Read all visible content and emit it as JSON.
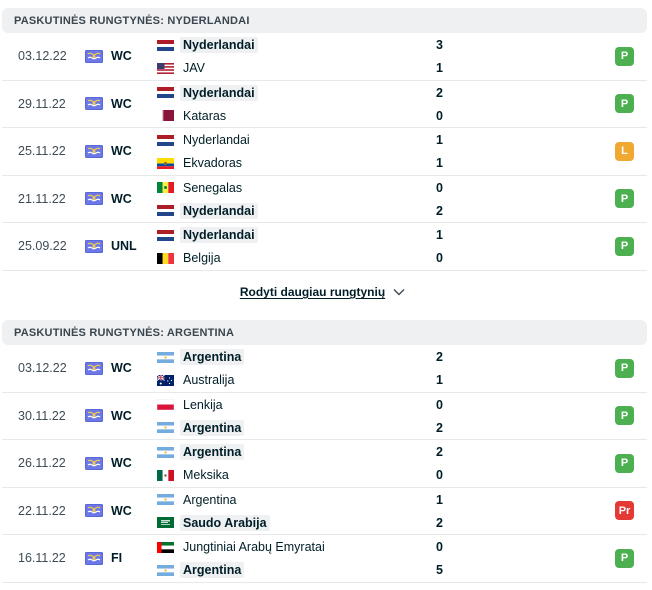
{
  "colors": {
    "win": "#4caf50",
    "draw": "#f0a830",
    "loss": "#e53935",
    "header_bg": "#eef0f1"
  },
  "sections": [
    {
      "title": "PASKUTINĖS RUNGTYNĖS: NYDERLANDAI",
      "matches": [
        {
          "date": "03.12.22",
          "comp": "WC",
          "home": {
            "name": "Nyderlandai",
            "flag": "nl",
            "score": "3",
            "winner": true
          },
          "away": {
            "name": "JAV",
            "flag": "us",
            "score": "1",
            "winner": false
          },
          "result": "P",
          "result_type": "win"
        },
        {
          "date": "29.11.22",
          "comp": "WC",
          "home": {
            "name": "Nyderlandai",
            "flag": "nl",
            "score": "2",
            "winner": true
          },
          "away": {
            "name": "Kataras",
            "flag": "qa",
            "score": "0",
            "winner": false
          },
          "result": "P",
          "result_type": "win"
        },
        {
          "date": "25.11.22",
          "comp": "WC",
          "home": {
            "name": "Nyderlandai",
            "flag": "nl",
            "score": "1",
            "winner": false
          },
          "away": {
            "name": "Ekvadoras",
            "flag": "ec",
            "score": "1",
            "winner": false
          },
          "result": "L",
          "result_type": "draw"
        },
        {
          "date": "21.11.22",
          "comp": "WC",
          "home": {
            "name": "Senegalas",
            "flag": "sn",
            "score": "0",
            "winner": false
          },
          "away": {
            "name": "Nyderlandai",
            "flag": "nl",
            "score": "2",
            "winner": true
          },
          "result": "P",
          "result_type": "win"
        },
        {
          "date": "25.09.22",
          "comp": "UNL",
          "home": {
            "name": "Nyderlandai",
            "flag": "nl",
            "score": "1",
            "winner": true
          },
          "away": {
            "name": "Belgija",
            "flag": "be",
            "score": "0",
            "winner": false
          },
          "result": "P",
          "result_type": "win"
        }
      ],
      "more_label": "Rodyti daugiau rungtynių"
    },
    {
      "title": "PASKUTINĖS RUNGTYNĖS: ARGENTINA",
      "matches": [
        {
          "date": "03.12.22",
          "comp": "WC",
          "home": {
            "name": "Argentina",
            "flag": "ar",
            "score": "2",
            "winner": true
          },
          "away": {
            "name": "Australija",
            "flag": "au",
            "score": "1",
            "winner": false
          },
          "result": "P",
          "result_type": "win"
        },
        {
          "date": "30.11.22",
          "comp": "WC",
          "home": {
            "name": "Lenkija",
            "flag": "pl",
            "score": "0",
            "winner": false
          },
          "away": {
            "name": "Argentina",
            "flag": "ar",
            "score": "2",
            "winner": true
          },
          "result": "P",
          "result_type": "win"
        },
        {
          "date": "26.11.22",
          "comp": "WC",
          "home": {
            "name": "Argentina",
            "flag": "ar",
            "score": "2",
            "winner": true
          },
          "away": {
            "name": "Meksika",
            "flag": "mx",
            "score": "0",
            "winner": false
          },
          "result": "P",
          "result_type": "win"
        },
        {
          "date": "22.11.22",
          "comp": "WC",
          "home": {
            "name": "Argentina",
            "flag": "ar",
            "score": "1",
            "winner": false
          },
          "away": {
            "name": "Saudo Arabija",
            "flag": "sa",
            "score": "2",
            "winner": true
          },
          "result": "Pr",
          "result_type": "loss"
        },
        {
          "date": "16.11.22",
          "comp": "FI",
          "home": {
            "name": "Jungtiniai Arabų Emyratai",
            "flag": "ae",
            "score": "0",
            "winner": false
          },
          "away": {
            "name": "Argentina",
            "flag": "ar",
            "score": "5",
            "winner": true
          },
          "result": "P",
          "result_type": "win"
        }
      ]
    }
  ]
}
